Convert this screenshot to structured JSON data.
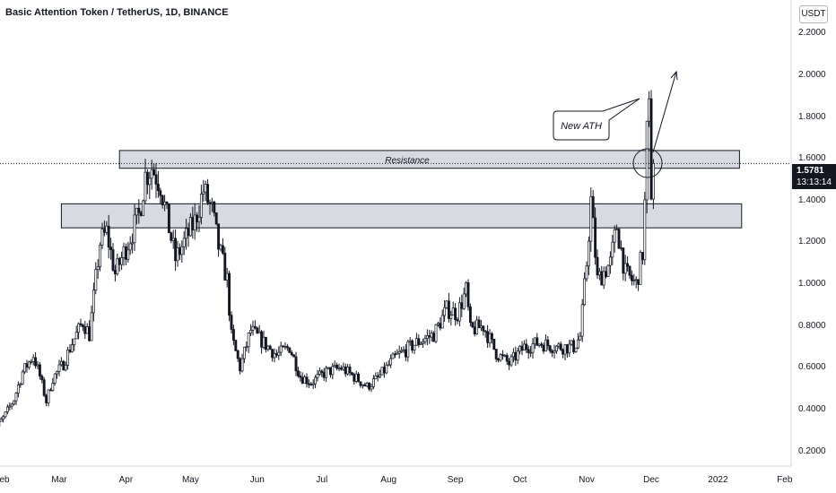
{
  "header": {
    "title": "Basic Attention Token / TetherUS, 1D, BINANCE"
  },
  "currency_button": "USDT",
  "price_tag": {
    "price": "1.5781",
    "countdown": "13:13:14"
  },
  "colors": {
    "candle": "#131722",
    "zone_fill": "#d1d4dc",
    "zone_border": "#131722",
    "current_price_line": "#131722"
  },
  "annotations": {
    "resistance_label": "Resistance",
    "callout": "New ATH"
  },
  "chart_data": {
    "type": "candlestick",
    "title": "Basic Attention Token / TetherUS, 1D, BINANCE",
    "y_ticks": [
      "2.2000",
      "2.0000",
      "1.8000",
      "1.6000",
      "1.4000",
      "1.2000",
      "1.0000",
      "0.8000",
      "0.6000",
      "0.4000",
      "0.2000"
    ],
    "x_ticks": [
      "Feb",
      "Mar",
      "Apr",
      "May",
      "Jun",
      "Jul",
      "Aug",
      "Sep",
      "Oct",
      "Nov",
      "Dec",
      "2022",
      "Feb"
    ],
    "ylim": [
      0.13,
      2.36
    ],
    "current_price": 1.5781,
    "zones": [
      {
        "name": "Resistance",
        "from": 1.555,
        "to": 1.64,
        "start": "2021-03-29",
        "end": "2022-01-11"
      },
      {
        "name": "",
        "from": 1.27,
        "to": 1.385,
        "start": "2021-03-02",
        "end": "2022-01-12"
      }
    ],
    "price_path": [
      [
        "2021-01-28",
        0.28
      ],
      [
        "2021-02-03",
        0.36
      ],
      [
        "2021-02-08",
        0.45
      ],
      [
        "2021-02-12",
        0.58
      ],
      [
        "2021-02-17",
        0.66
      ],
      [
        "2021-02-20",
        0.56
      ],
      [
        "2021-02-23",
        0.44
      ],
      [
        "2021-02-26",
        0.55
      ],
      [
        "2021-03-03",
        0.62
      ],
      [
        "2021-03-07",
        0.72
      ],
      [
        "2021-03-12",
        0.82
      ],
      [
        "2021-03-15",
        0.76
      ],
      [
        "2021-03-20",
        1.2
      ],
      [
        "2021-03-23",
        1.25
      ],
      [
        "2021-03-27",
        1.05
      ],
      [
        "2021-04-02",
        1.2
      ],
      [
        "2021-04-07",
        1.33
      ],
      [
        "2021-04-10",
        1.52
      ],
      [
        "2021-04-13",
        1.56
      ],
      [
        "2021-04-17",
        1.48
      ],
      [
        "2021-04-20",
        1.32
      ],
      [
        "2021-04-24",
        1.12
      ],
      [
        "2021-04-27",
        1.18
      ],
      [
        "2021-05-03",
        1.3
      ],
      [
        "2021-05-07",
        1.45
      ],
      [
        "2021-05-11",
        1.35
      ],
      [
        "2021-05-14",
        1.18
      ],
      [
        "2021-05-18",
        1.02
      ],
      [
        "2021-05-20",
        0.75
      ],
      [
        "2021-05-24",
        0.6
      ],
      [
        "2021-05-29",
        0.78
      ],
      [
        "2021-06-04",
        0.72
      ],
      [
        "2021-06-10",
        0.66
      ],
      [
        "2021-06-16",
        0.7
      ],
      [
        "2021-06-21",
        0.56
      ],
      [
        "2021-06-26",
        0.53
      ],
      [
        "2021-07-03",
        0.58
      ],
      [
        "2021-07-10",
        0.6
      ],
      [
        "2021-07-17",
        0.55
      ],
      [
        "2021-07-22",
        0.51
      ],
      [
        "2021-07-27",
        0.55
      ],
      [
        "2021-08-04",
        0.65
      ],
      [
        "2021-08-14",
        0.72
      ],
      [
        "2021-08-22",
        0.76
      ],
      [
        "2021-08-28",
        0.88
      ],
      [
        "2021-09-02",
        0.86
      ],
      [
        "2021-09-06",
        0.97
      ],
      [
        "2021-09-08",
        0.78
      ],
      [
        "2021-09-14",
        0.8
      ],
      [
        "2021-09-20",
        0.67
      ],
      [
        "2021-09-26",
        0.62
      ],
      [
        "2021-10-03",
        0.7
      ],
      [
        "2021-10-10",
        0.72
      ],
      [
        "2021-10-18",
        0.7
      ],
      [
        "2021-10-26",
        0.7
      ],
      [
        "2021-10-29",
        0.75
      ],
      [
        "2021-11-01",
        1.1
      ],
      [
        "2021-11-03",
        1.4
      ],
      [
        "2021-11-06",
        1.02
      ],
      [
        "2021-11-12",
        1.1
      ],
      [
        "2021-11-15",
        1.28
      ],
      [
        "2021-11-19",
        1.05
      ],
      [
        "2021-11-24",
        1.0
      ],
      [
        "2021-11-27",
        1.15
      ],
      [
        "2021-11-28",
        1.38
      ],
      [
        "2021-11-29",
        1.72
      ],
      [
        "2021-11-30",
        1.82
      ],
      [
        "2021-12-01",
        1.45
      ],
      [
        "2021-12-02",
        1.58
      ]
    ]
  }
}
